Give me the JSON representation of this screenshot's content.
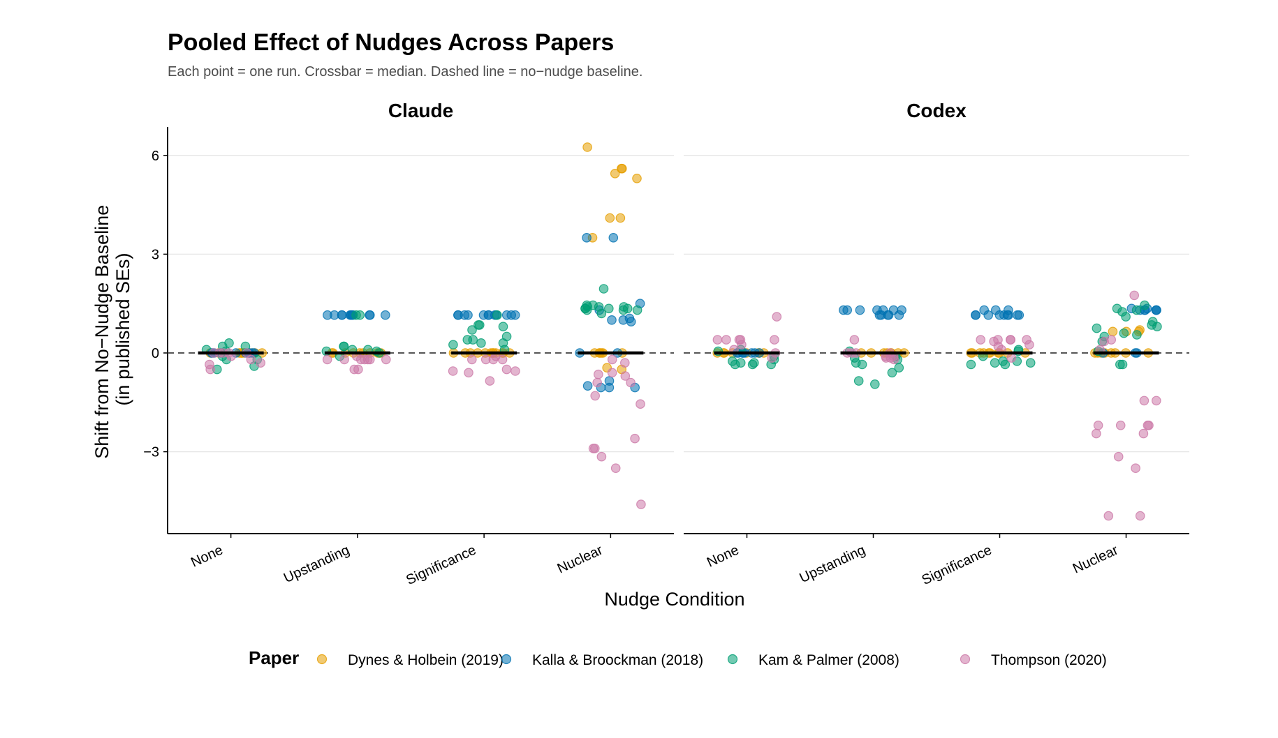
{
  "title": "Pooled Effect of Nudges Across Papers",
  "subtitle": "Each point = one run. Crossbar = median. Dashed line = no−nudge baseline.",
  "colors": {
    "Dynes & Holbein (2019)": "#E69F00",
    "Kalla & Broockman (2018)": "#0072B2",
    "Kam & Palmer (2008)": "#009E73",
    "Thompson (2020)": "#CC79A7"
  },
  "chart_data": {
    "type": "scatter",
    "subtype": "faceted jitter strip plot with median crossbars",
    "xlabel": "Nudge Condition",
    "ylabel": "Shift from No−Nudge Baseline (in published SEs)",
    "ylabel_lines": [
      "Shift from No−Nudge Baseline",
      "(in published SEs)"
    ],
    "categories": [
      "None",
      "Upstanding",
      "Significance",
      "Nuclear"
    ],
    "yticks": [
      -3,
      0,
      3,
      6
    ],
    "ytick_labels": [
      "−3",
      "0",
      "3",
      "6"
    ],
    "ylim": [
      -5.5,
      6.8
    ],
    "baseline": 0,
    "grid": "horizontal major gridlines",
    "legend": {
      "title": "Paper",
      "position": "bottom",
      "entries": [
        "Dynes & Holbein (2019)",
        "Kalla & Broockman (2018)",
        "Kam & Palmer (2008)",
        "Thompson (2020)"
      ]
    },
    "facets": [
      {
        "name": "Claude",
        "medians": [
          0,
          0,
          0,
          0
        ],
        "groups": {
          "None": {
            "Dynes & Holbein (2019)": [
              0,
              0,
              0,
              0,
              0,
              0,
              0,
              0,
              0,
              0
            ],
            "Kalla & Broockman (2018)": [
              0,
              0,
              0,
              0,
              0,
              0,
              0,
              0,
              0,
              0
            ],
            "Kam & Palmer (2008)": [
              0.1,
              0.3,
              0.2,
              -0.1,
              -0.5,
              0.2,
              -0.2,
              -0.4,
              0.05,
              -0.2
            ],
            "Thompson (2020)": [
              -0.2,
              -0.5,
              -0.35,
              0,
              0,
              -0.1,
              -0.3,
              0,
              0,
              0
            ]
          },
          "Upstanding": {
            "Dynes & Holbein (2019)": [
              0,
              0,
              0,
              0,
              0,
              0,
              0,
              0,
              0,
              0
            ],
            "Kalla & Broockman (2018)": [
              1.15,
              1.15,
              1.15,
              1.15,
              1.15,
              1.15,
              1.15,
              1.15,
              1.15,
              1.15,
              1.15,
              1.15
            ],
            "Kam & Palmer (2008)": [
              0.1,
              0.05,
              0.2,
              0.2,
              0.1,
              -0.1,
              0.05,
              1.15,
              1.15,
              0
            ],
            "Thompson (2020)": [
              -0.2,
              -0.2,
              -0.2,
              -0.2,
              -0.5,
              -0.5,
              -0.2,
              -0.2,
              -0.1,
              -0.2
            ]
          },
          "Significance": {
            "Dynes & Holbein (2019)": [
              0,
              0,
              0,
              0,
              0,
              0,
              0,
              0,
              0,
              0,
              0,
              0
            ],
            "Kalla & Broockman (2018)": [
              1.15,
              1.15,
              1.15,
              1.15,
              1.15,
              1.15,
              1.15,
              1.15,
              1.15,
              1.15,
              1.15,
              1.15
            ],
            "Kam & Palmer (2008)": [
              0.3,
              0.8,
              0.7,
              0.5,
              0.4,
              0.3,
              0.85,
              0.85,
              0.25,
              0.4,
              1.15,
              0.1
            ],
            "Thompson (2020)": [
              -0.2,
              -0.55,
              -0.85,
              -0.5,
              -0.2,
              -0.55,
              -0.6,
              -0.2,
              -0.2,
              -0.1
            ]
          },
          "Nuclear": {
            "Dynes & Holbein (2019)": [
              5.6,
              4.1,
              4.1,
              5.3,
              5.6,
              6.25,
              5.45,
              3.5,
              -0.5,
              -0.45,
              0,
              0,
              0,
              0,
              0,
              0
            ],
            "Kalla & Broockman (2018)": [
              3.5,
              3.5,
              1.5,
              1.0,
              1.0,
              0.95,
              1.05,
              1.3,
              -1.05,
              -0.85,
              -1.0,
              -1.05,
              -1.05,
              0,
              0
            ],
            "Kam & Palmer (2008)": [
              1.95,
              1.35,
              1.4,
              1.45,
              1.3,
              1.35,
              1.4,
              1.3,
              1.2,
              1.45,
              1.35,
              1.3,
              1.4,
              1.35
            ],
            "Thompson (2020)": [
              -2.6,
              -3.15,
              -4.6,
              -2.9,
              -2.9,
              -3.5,
              -1.55,
              -1.3,
              -0.7,
              -0.65,
              -0.9,
              -0.9,
              -0.6,
              -0.3,
              -0.2
            ]
          }
        }
      },
      {
        "name": "Codex",
        "medians": [
          0,
          0,
          0,
          0
        ],
        "groups": {
          "None": {
            "Dynes & Holbein (2019)": [
              0,
              0,
              0,
              0,
              0,
              0,
              0,
              0
            ],
            "Kalla & Broockman (2018)": [
              0,
              0,
              0,
              0,
              0,
              0,
              0,
              0
            ],
            "Kam & Palmer (2008)": [
              -0.35,
              -0.35,
              -0.2,
              -0.1,
              -0.3,
              -0.3,
              -0.35,
              -0.25,
              0.05,
              0.1
            ],
            "Thompson (2020)": [
              0.4,
              0.4,
              1.1,
              0.4,
              0.25,
              0.4,
              0.4,
              -0.15,
              0.1,
              0
            ]
          },
          "Upstanding": {
            "Dynes & Holbein (2019)": [
              0,
              0,
              0,
              0,
              0,
              0,
              0,
              0
            ],
            "Kalla & Broockman (2018)": [
              1.15,
              1.15,
              1.3,
              1.3,
              1.15,
              1.15,
              1.3,
              1.3,
              1.3,
              1.3,
              1.15,
              1.3
            ],
            "Kam & Palmer (2008)": [
              -0.95,
              -0.2,
              -0.15,
              0.05,
              -0.3,
              -0.45,
              -0.6,
              -0.85,
              -0.35,
              -0.1
            ],
            "Thompson (2020)": [
              -0.15,
              -0.1,
              -0.15,
              0.4,
              -0.2,
              -0.1,
              0,
              0,
              0,
              0
            ]
          },
          "Significance": {
            "Dynes & Holbein (2019)": [
              0,
              0,
              0,
              0,
              0,
              0,
              0,
              0,
              0,
              0
            ],
            "Kalla & Broockman (2018)": [
              1.3,
              1.15,
              1.15,
              1.3,
              1.15,
              1.15,
              1.15,
              1.3,
              1.15,
              1.15,
              1.15,
              1.15
            ],
            "Kam & Palmer (2008)": [
              -0.35,
              -0.25,
              -0.25,
              -0.3,
              -0.35,
              -0.3,
              0.05,
              0.1,
              -0.1
            ],
            "Thompson (2020)": [
              0.4,
              0.4,
              0.4,
              0.35,
              0.4,
              0.25,
              0.4,
              0.2,
              -0.15,
              0.1
            ]
          },
          "Nuclear": {
            "Dynes & Holbein (2019)": [
              0.65,
              0.65,
              0.7,
              0.65,
              0,
              0,
              0,
              0,
              0,
              0,
              0,
              0
            ],
            "Kalla & Broockman (2018)": [
              1.3,
              1.3,
              1.35,
              1.3,
              1.3,
              1.3,
              1.35,
              1.3,
              0,
              0,
              0
            ],
            "Kam & Palmer (2008)": [
              1.45,
              1.35,
              1.3,
              1.1,
              0.85,
              0.6,
              0.75,
              0.55,
              0.35,
              0.5,
              0.8,
              -0.35,
              -0.35,
              0.05,
              0.95,
              1.25
            ],
            "Thompson (2020)": [
              1.75,
              -1.45,
              -1.45,
              -2.45,
              -3.15,
              -4.95,
              -4.95,
              -2.2,
              -2.45,
              -2.2,
              -2.2,
              -2.2,
              -3.5,
              0.4,
              0.35,
              0.1
            ]
          }
        }
      }
    ]
  }
}
